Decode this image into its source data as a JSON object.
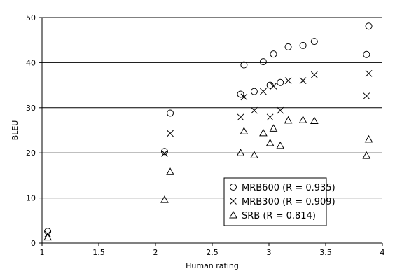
{
  "chart_data": {
    "type": "scatter",
    "title": "",
    "xlabel": "Human rating",
    "ylabel": "BLEU",
    "xlim": [
      1,
      4
    ],
    "ylim": [
      0,
      50
    ],
    "xticks": [
      "1",
      "1.5",
      "2",
      "2.5",
      "3",
      "3.5",
      "4"
    ],
    "yticks": [
      "0",
      "10",
      "20",
      "30",
      "40",
      "50"
    ],
    "grid": "horizontal",
    "legend_position": "bottom-right inside plot",
    "series": [
      {
        "name": "MRB600 (R = 0.935)",
        "marker": "circle",
        "points": [
          [
            1.05,
            2.6
          ],
          [
            2.08,
            20.3
          ],
          [
            2.13,
            28.8
          ],
          [
            2.75,
            33.0
          ],
          [
            2.78,
            39.5
          ],
          [
            2.87,
            33.6
          ],
          [
            2.95,
            40.2
          ],
          [
            3.01,
            35.0
          ],
          [
            3.04,
            41.9
          ],
          [
            3.1,
            35.6
          ],
          [
            3.17,
            43.5
          ],
          [
            3.3,
            43.8
          ],
          [
            3.4,
            44.7
          ],
          [
            3.86,
            41.8
          ],
          [
            3.88,
            48.1
          ]
        ]
      },
      {
        "name": "MRB300 (R = 0.909)",
        "marker": "x",
        "points": [
          [
            1.05,
            2.0
          ],
          [
            2.08,
            19.9
          ],
          [
            2.13,
            24.3
          ],
          [
            2.75,
            27.9
          ],
          [
            2.78,
            32.4
          ],
          [
            2.87,
            29.4
          ],
          [
            2.95,
            33.6
          ],
          [
            3.01,
            27.9
          ],
          [
            3.04,
            34.8
          ],
          [
            3.1,
            29.4
          ],
          [
            3.17,
            36.0
          ],
          [
            3.3,
            36.0
          ],
          [
            3.4,
            37.3
          ],
          [
            3.86,
            32.6
          ],
          [
            3.88,
            37.6
          ]
        ]
      },
      {
        "name": "SRB (R = 0.814)",
        "marker": "triangle",
        "points": [
          [
            1.05,
            1.3
          ],
          [
            2.08,
            9.6
          ],
          [
            2.13,
            15.8
          ],
          [
            2.75,
            20.0
          ],
          [
            2.78,
            24.8
          ],
          [
            2.87,
            19.5
          ],
          [
            2.95,
            24.4
          ],
          [
            3.01,
            22.2
          ],
          [
            3.04,
            25.4
          ],
          [
            3.1,
            21.6
          ],
          [
            3.17,
            27.2
          ],
          [
            3.3,
            27.3
          ],
          [
            3.4,
            27.1
          ],
          [
            3.86,
            19.4
          ],
          [
            3.88,
            23.0
          ]
        ]
      }
    ]
  }
}
